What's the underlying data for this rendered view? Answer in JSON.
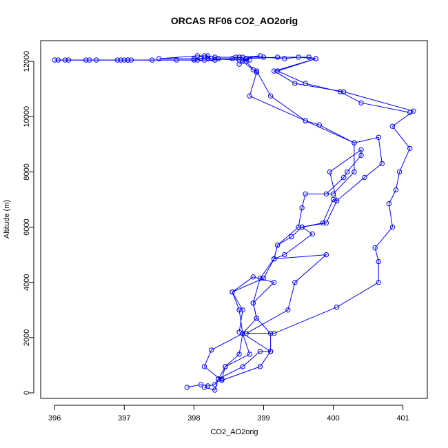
{
  "chart_data": {
    "type": "line",
    "title": "ORCAS RF06 CO2_AO2orig",
    "xlabel": "CO2_AO2orig",
    "ylabel": "Altitude (m)",
    "xlim": [
      395.8,
      401.35
    ],
    "ylim": [
      -200,
      12750
    ],
    "xticks": [
      396,
      397,
      398,
      399,
      400,
      401
    ],
    "yticks": [
      0,
      2000,
      4000,
      6000,
      8000,
      10000,
      12000
    ],
    "colors": {
      "series": "#0000ff",
      "axis": "#000000"
    },
    "grid": false,
    "legend": "none",
    "series": [
      {
        "points": [
          [
            397.9,
            200
          ],
          [
            398.1,
            300
          ],
          [
            398.2,
            250
          ],
          [
            398.3,
            300
          ],
          [
            398.35,
            500
          ],
          [
            398.7,
            950
          ],
          [
            398.95,
            1500
          ],
          [
            399.1,
            1500
          ],
          [
            398.7,
            2150
          ],
          [
            398.65,
            3000
          ],
          [
            398.55,
            3650
          ],
          [
            399.0,
            4150
          ],
          [
            399.15,
            4850
          ],
          [
            399.9,
            5000
          ],
          [
            399.45,
            4000
          ],
          [
            399.35,
            3000
          ],
          [
            398.75,
            2150
          ],
          [
            399.15,
            2150
          ],
          [
            400.05,
            3100
          ],
          [
            400.65,
            4000
          ],
          [
            400.65,
            4750
          ],
          [
            400.6,
            5250
          ],
          [
            400.85,
            6000
          ],
          [
            400.8,
            6850
          ],
          [
            400.9,
            7350
          ],
          [
            400.95,
            8000
          ],
          [
            401.1,
            8850
          ],
          [
            400.85,
            9650
          ],
          [
            401.15,
            10200
          ],
          [
            400.15,
            10900
          ],
          [
            399.45,
            11200
          ],
          [
            399.15,
            11650
          ],
          [
            399.75,
            12100
          ],
          [
            399.65,
            12150
          ],
          [
            399.2,
            12150
          ],
          [
            398.75,
            12100
          ],
          [
            398.7,
            12000
          ],
          [
            398.9,
            11600
          ],
          [
            398.8,
            10750
          ],
          [
            399.6,
            9850
          ],
          [
            399.8,
            9700
          ],
          [
            400.3,
            9050
          ],
          [
            400.3,
            8000
          ],
          [
            400.0,
            7200
          ],
          [
            399.6,
            7200
          ],
          [
            399.55,
            6700
          ],
          [
            399.5,
            6000
          ],
          [
            399.2,
            5350
          ],
          [
            399.15,
            4850
          ],
          [
            399.3,
            5000
          ],
          [
            399.7,
            5750
          ],
          [
            399.55,
            6000
          ],
          [
            399.85,
            6150
          ],
          [
            400.0,
            7000
          ],
          [
            400.05,
            6950
          ],
          [
            399.95,
            8000
          ],
          [
            400.4,
            8800
          ],
          [
            400.4,
            8600
          ],
          [
            400.2,
            8000
          ],
          [
            400.15,
            7800
          ],
          [
            399.9,
            7200
          ]
        ]
      },
      {
        "points": [
          [
            398.15,
            200
          ],
          [
            398.3,
            100
          ],
          [
            398.35,
            500
          ],
          [
            398.45,
            950
          ],
          [
            398.8,
            1400
          ],
          [
            398.7,
            2150
          ],
          [
            398.25,
            1550
          ],
          [
            398.15,
            950
          ],
          [
            398.4,
            450
          ],
          [
            398.95,
            950
          ],
          [
            399.1,
            1500
          ],
          [
            399.1,
            2150
          ],
          [
            398.9,
            2700
          ],
          [
            398.85,
            3250
          ],
          [
            399.15,
            4000
          ],
          [
            398.85,
            4200
          ],
          [
            398.55,
            3650
          ],
          [
            398.7,
            3000
          ],
          [
            398.65,
            2200
          ]
        ]
      },
      {
        "points": [
          [
            398.75,
            12000
          ],
          [
            398.85,
            11700
          ],
          [
            398.9,
            11650
          ],
          [
            399.1,
            10750
          ],
          [
            399.6,
            9850
          ],
          [
            400.3,
            9050
          ],
          [
            400.65,
            9250
          ],
          [
            400.7,
            8300
          ],
          [
            400.45,
            7800
          ],
          [
            400.05,
            6950
          ],
          [
            399.9,
            6150
          ],
          [
            399.55,
            6000
          ],
          [
            399.4,
            5650
          ],
          [
            399.2,
            5350
          ],
          [
            399.15,
            4850
          ],
          [
            398.95,
            4150
          ],
          [
            398.85,
            3250
          ],
          [
            398.9,
            2700
          ],
          [
            398.7,
            2150
          ],
          [
            398.65,
            1400
          ],
          [
            398.45,
            950
          ],
          [
            398.4,
            500
          ],
          [
            398.35,
            500
          ]
        ]
      },
      {
        "points": [
          [
            396.05,
            12050
          ],
          [
            396.2,
            12050
          ],
          [
            396.5,
            12050
          ],
          [
            396.6,
            12050
          ],
          [
            396.95,
            12050
          ],
          [
            397.05,
            12050
          ],
          [
            397.1,
            12050
          ],
          [
            397.4,
            12050
          ],
          [
            397.75,
            12050
          ],
          [
            398.05,
            12050
          ],
          [
            398.15,
            12050
          ],
          [
            398.3,
            12050
          ],
          [
            398.35,
            12100
          ],
          [
            398.55,
            12100
          ],
          [
            398.6,
            12150
          ],
          [
            398.75,
            12100
          ],
          [
            398.8,
            12050
          ],
          [
            398.65,
            12050
          ],
          [
            398.2,
            12100
          ],
          [
            398.0,
            12100
          ],
          [
            397.5,
            12100
          ],
          [
            398.05,
            12200
          ],
          [
            398.2,
            12200
          ],
          [
            398.3,
            12150
          ],
          [
            398.65,
            12150
          ],
          [
            399.0,
            12150
          ],
          [
            399.3,
            12100
          ],
          [
            399.5,
            12150
          ],
          [
            399.75,
            12100
          ],
          [
            399.2,
            11650
          ],
          [
            399.6,
            11200
          ],
          [
            400.1,
            10900
          ],
          [
            400.4,
            10500
          ],
          [
            401.1,
            10150
          ]
        ]
      },
      {
        "points": [
          [
            396.0,
            12050
          ],
          [
            396.15,
            12050
          ],
          [
            396.45,
            12050
          ],
          [
            396.9,
            12050
          ],
          [
            397.0,
            12050
          ],
          [
            397.05,
            12050
          ],
          [
            398.0,
            12050
          ],
          [
            398.1,
            12100
          ],
          [
            398.15,
            12200
          ],
          [
            398.25,
            12100
          ],
          [
            398.3,
            12050
          ],
          [
            398.7,
            12150
          ],
          [
            398.95,
            12200
          ],
          [
            398.75,
            12100
          ],
          [
            398.65,
            11900
          ]
        ]
      }
    ]
  }
}
